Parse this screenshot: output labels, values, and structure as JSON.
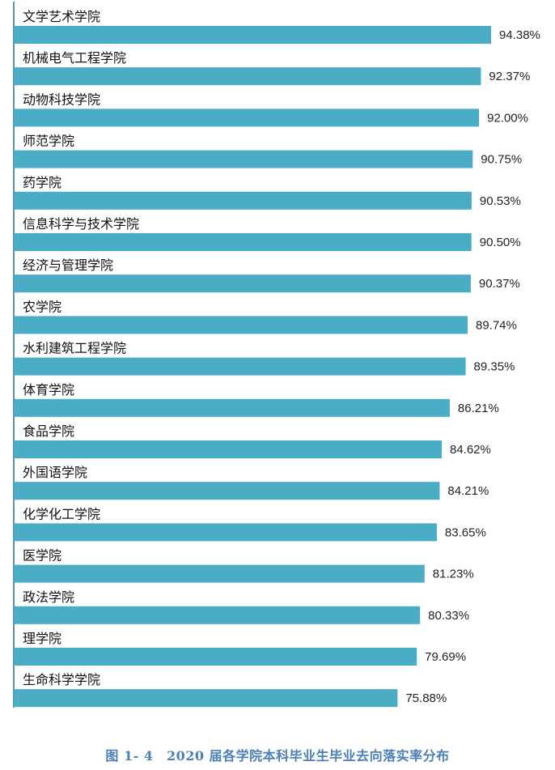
{
  "caption": "图 1- 4　2020 届各学院本科毕业生毕业去向落实率分布",
  "colors": {
    "bar": "#4bacc6",
    "axis": "#2b6f8a",
    "caption": "#4a7fb8"
  },
  "chart_data": {
    "type": "bar",
    "orientation": "horizontal",
    "title": "图 1- 4　2020 届各学院本科毕业生毕业去向落实率分布",
    "categories": [
      "文学艺术学院",
      "机械电气工程学院",
      "动物科技学院",
      "师范学院",
      "药学院",
      "信息科学与技术学院",
      "经济与管理学院",
      "农学院",
      "水利建筑工程学院",
      "体育学院",
      "食品学院",
      "外国语学院",
      "化学化工学院",
      "医学院",
      "政法学院",
      "理学院",
      "生命科学学院"
    ],
    "values": [
      94.38,
      92.37,
      92.0,
      90.75,
      90.53,
      90.5,
      90.37,
      89.74,
      89.35,
      86.21,
      84.62,
      84.21,
      83.65,
      81.23,
      80.33,
      79.69,
      75.88
    ],
    "value_labels": [
      "94.38%",
      "92.37%",
      "92.00%",
      "90.75%",
      "90.53%",
      "90.50%",
      "90.37%",
      "89.74%",
      "89.35%",
      "86.21%",
      "84.62%",
      "84.21%",
      "83.65%",
      "81.23%",
      "80.33%",
      "79.69%",
      "75.88%"
    ],
    "unit": "%",
    "legend": "none",
    "grid": false
  }
}
